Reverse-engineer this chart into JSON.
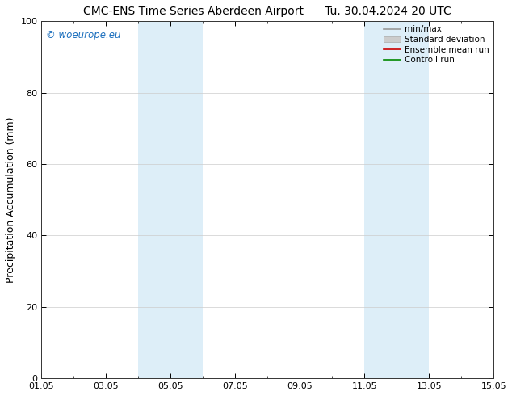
{
  "title": "CMC-ENS Time Series Aberdeen Airport",
  "title_right": "Tu. 30.04.2024 20 UTC",
  "ylabel": "Precipitation Accumulation (mm)",
  "watermark": "© woeurope.eu",
  "ylim": [
    0,
    100
  ],
  "yticks": [
    0,
    20,
    40,
    60,
    80,
    100
  ],
  "x_tick_labels": [
    "01.05",
    "03.05",
    "05.05",
    "07.05",
    "09.05",
    "11.05",
    "13.05",
    "15.05"
  ],
  "x_tick_positions": [
    0,
    2,
    4,
    6,
    8,
    10,
    12,
    14
  ],
  "xlim": [
    0,
    14
  ],
  "shaded_regions": [
    {
      "x_start": 3.0,
      "x_end": 5.0,
      "color": "#ddeef8"
    },
    {
      "x_start": 10.0,
      "x_end": 12.0,
      "color": "#ddeef8"
    }
  ],
  "legend_entries": [
    {
      "label": "min/max",
      "color": "#999999",
      "type": "line",
      "linewidth": 1.2
    },
    {
      "label": "Standard deviation",
      "color": "#cccccc",
      "type": "patch"
    },
    {
      "label": "Ensemble mean run",
      "color": "#cc0000",
      "type": "line",
      "linewidth": 1.2
    },
    {
      "label": "Controll run",
      "color": "#008800",
      "type": "line",
      "linewidth": 1.2
    }
  ],
  "background_color": "#ffffff",
  "plot_bg_color": "#ffffff",
  "grid_color": "#cccccc",
  "watermark_color": "#1a6ebd",
  "title_fontsize": 10,
  "axis_label_fontsize": 9,
  "tick_fontsize": 8,
  "legend_fontsize": 7.5,
  "watermark_fontsize": 8.5
}
